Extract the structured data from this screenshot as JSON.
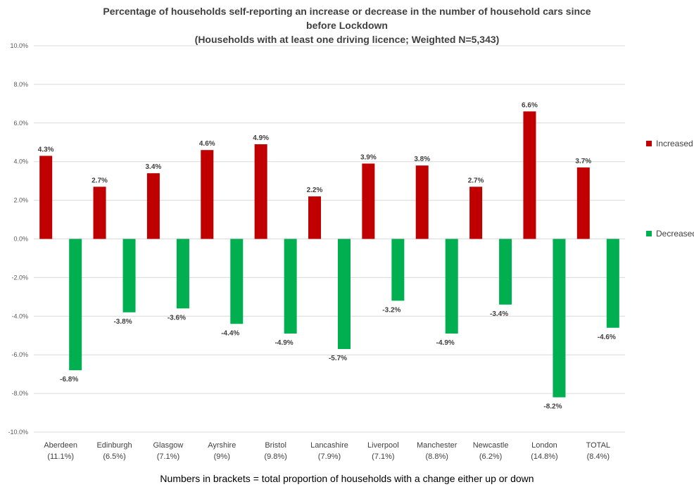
{
  "chart_data": {
    "type": "bar",
    "title_lines": [
      "Percentage of households self-reporting an increase or decrease in the number of household cars since",
      "before Lockdown",
      "(Households with at least one driving licence; Weighted N=5,343)"
    ],
    "categories": [
      "Aberdeen",
      "Edinburgh",
      "Glasgow",
      "Ayrshire",
      "Bristol",
      "Lancashire",
      "Liverpool",
      "Manchester",
      "Newcastle",
      "London",
      "TOTAL"
    ],
    "category_sublabels": [
      "(11.1%)",
      "(6.5%)",
      "(7.1%)",
      "(9%)",
      "(9.8%)",
      "(7.9%)",
      "(7.1%)",
      "(8.8%)",
      "(6.2%)",
      "(14.8%)",
      "(8.4%)"
    ],
    "series": [
      {
        "name": "Increased",
        "color": "#C00000",
        "values": [
          4.3,
          2.7,
          3.4,
          4.6,
          4.9,
          2.2,
          3.9,
          3.8,
          2.7,
          6.6,
          3.7
        ],
        "labels": [
          "4.3%",
          "2.7%",
          "3.4%",
          "4.6%",
          "4.9%",
          "2.2%",
          "3.9%",
          "3.8%",
          "2.7%",
          "6.6%",
          "3.7%"
        ]
      },
      {
        "name": "Decreased",
        "color": "#00B050",
        "values": [
          -6.8,
          -3.8,
          -3.6,
          -4.4,
          -4.9,
          -5.7,
          -3.2,
          -4.9,
          -3.4,
          -8.2,
          -4.6
        ],
        "labels": [
          "-6.8%",
          "-3.8%",
          "-3.6%",
          "-4.4%",
          "-4.9%",
          "-5.7%",
          "-3.2%",
          "-4.9%",
          "-3.4%",
          "-8.2%",
          "-4.6%"
        ]
      }
    ],
    "ylim": [
      -10,
      10
    ],
    "y_ticks": [
      10,
      8,
      6,
      4,
      2,
      0,
      -2,
      -4,
      -6,
      -8,
      -10
    ],
    "y_tick_labels": [
      "10.0%",
      "8.0%",
      "6.0%",
      "4.0%",
      "2.0%",
      "0.0%",
      "-2.0%",
      "-4.0%",
      "-6.0%",
      "-8.0%",
      "-10.0%"
    ],
    "grid": true,
    "legend_position": "right",
    "footnote": "Numbers in brackets = total proportion of households with a change either up or down"
  }
}
